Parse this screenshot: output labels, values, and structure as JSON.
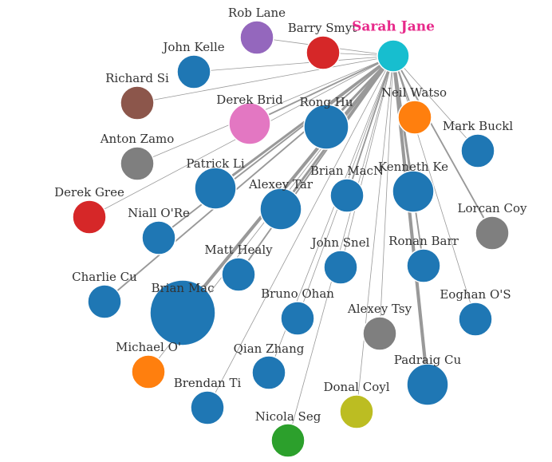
{
  "graph": {
    "center": {
      "name": "Sarah Jane",
      "color": "#e7298a",
      "node_color": "#17becf"
    },
    "label_color": "#333333",
    "link_color": "#999999",
    "nodes": [
      {
        "id": "rob-lane",
        "label": "Rob Lane",
        "color": "#9467bd",
        "size": "small",
        "link_weight": 1
      },
      {
        "id": "barry-smyth",
        "label": "Barry Smyt",
        "color": "#d62728",
        "size": "small",
        "link_weight": 1
      },
      {
        "id": "john-kelle",
        "label": "John Kelle",
        "color": "#1f77b4",
        "size": "small",
        "link_weight": 1
      },
      {
        "id": "richard-si",
        "label": "Richard Si",
        "color": "#8c564b",
        "size": "small",
        "link_weight": 1
      },
      {
        "id": "derek-brid",
        "label": "Derek Brid",
        "color": "#e377c2",
        "size": "medium",
        "link_weight": 2
      },
      {
        "id": "rong-hu",
        "label": "Rong Hu",
        "color": "#1f77b4",
        "size": "large",
        "link_weight": 3
      },
      {
        "id": "neil-watso",
        "label": "Neil Watso",
        "color": "#ff7f0e",
        "size": "small",
        "link_weight": 2
      },
      {
        "id": "mark-buckl",
        "label": "Mark Buckl",
        "color": "#1f77b4",
        "size": "small",
        "link_weight": 1
      },
      {
        "id": "anton-zamo",
        "label": "Anton Zamo",
        "color": "#7f7f7f",
        "size": "small",
        "link_weight": 1
      },
      {
        "id": "patrick-li",
        "label": "Patrick Li",
        "color": "#1f77b4",
        "size": "medium",
        "link_weight": 3
      },
      {
        "id": "brian-macn",
        "label": "Brian MacN",
        "color": "#1f77b4",
        "size": "small",
        "link_weight": 2
      },
      {
        "id": "kenneth-ke",
        "label": "Kenneth Ke",
        "color": "#1f77b4",
        "size": "medium",
        "link_weight": 3
      },
      {
        "id": "derek-gree",
        "label": "Derek Gree",
        "color": "#d62728",
        "size": "small",
        "link_weight": 1
      },
      {
        "id": "alexey-tar",
        "label": "Alexey Tar",
        "color": "#1f77b4",
        "size": "medium",
        "link_weight": 3
      },
      {
        "id": "lorcan-coy",
        "label": "Lorcan Coy",
        "color": "#7f7f7f",
        "size": "small",
        "link_weight": 2
      },
      {
        "id": "niall-ore",
        "label": "Niall O'Re",
        "color": "#1f77b4",
        "size": "small",
        "link_weight": 2
      },
      {
        "id": "john-snel",
        "label": "John Snel",
        "color": "#1f77b4",
        "size": "small",
        "link_weight": 1
      },
      {
        "id": "ronan-barr",
        "label": "Ronan Barr",
        "color": "#1f77b4",
        "size": "small",
        "link_weight": 2
      },
      {
        "id": "matt-healy",
        "label": "Matt Healy",
        "color": "#1f77b4",
        "size": "small",
        "link_weight": 2
      },
      {
        "id": "charlie-cu",
        "label": "Charlie Cu",
        "color": "#1f77b4",
        "size": "small",
        "link_weight": 2
      },
      {
        "id": "brian-mac",
        "label": "Brian Mac",
        "color": "#1f77b4",
        "size": "xlarge",
        "link_weight": 4
      },
      {
        "id": "bruno-ohan",
        "label": "Bruno Ohan",
        "color": "#1f77b4",
        "size": "small",
        "link_weight": 1
      },
      {
        "id": "eoghan-os",
        "label": "Eoghan O'S",
        "color": "#1f77b4",
        "size": "small",
        "link_weight": 1
      },
      {
        "id": "alexey-tsy",
        "label": "Alexey Tsy",
        "color": "#7f7f7f",
        "size": "small",
        "link_weight": 1
      },
      {
        "id": "michael-o",
        "label": "Michael O'",
        "color": "#ff7f0e",
        "size": "small",
        "link_weight": 1
      },
      {
        "id": "qian-zhang",
        "label": "Qian Zhang",
        "color": "#1f77b4",
        "size": "small",
        "link_weight": 1
      },
      {
        "id": "padraig-cu",
        "label": "Padraig Cu",
        "color": "#1f77b4",
        "size": "medium",
        "link_weight": 4
      },
      {
        "id": "brendan-ti",
        "label": "Brendan Ti",
        "color": "#1f77b4",
        "size": "small",
        "link_weight": 1
      },
      {
        "id": "donal-coyl",
        "label": "Donal Coyl",
        "color": "#bcbd22",
        "size": "small",
        "link_weight": 1
      },
      {
        "id": "nicola-seg",
        "label": "Nicola Seg",
        "color": "#2ca02c",
        "size": "small",
        "link_weight": 1
      }
    ]
  }
}
